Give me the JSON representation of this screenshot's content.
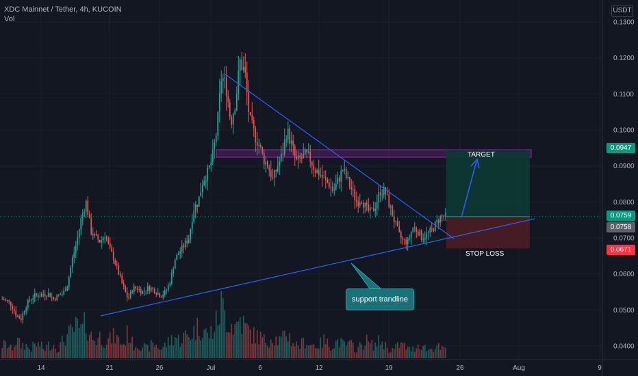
{
  "legend": {
    "title": "XDC Mainnet / Tether, 4h, KUCOIN",
    "vol": "Vol"
  },
  "currency": "USDT",
  "colors": {
    "up": "#26a69a",
    "down": "#ef5350",
    "trend": "#2962ff",
    "target_zone": "#9c27b0",
    "long_profit": "#0d3a35",
    "long_loss": "#4a1d22"
  },
  "price_tags": {
    "target": {
      "text": "0.0947",
      "color": "#089981"
    },
    "last": {
      "text": "0.0759",
      "color": "#089981"
    },
    "current": {
      "text": "0.0758",
      "color": "#5d606b"
    },
    "stop": {
      "text": "0.0671",
      "color": "#f23645"
    }
  },
  "annotations": {
    "target": "TARGET",
    "stop_loss": "STOP LOSS",
    "support": "support trandline"
  },
  "chart_data": {
    "type": "candlestick",
    "title": "XDC Mainnet / Tether, 4h, KUCOIN",
    "ylim": [
      0.037,
      0.1315
    ],
    "y_ticks": [
      "0.1300",
      "0.1200",
      "0.1100",
      "0.1000",
      "0.0900",
      "0.0800",
      "0.0700",
      "0.0600",
      "0.0500",
      "0.0400"
    ],
    "x_ticks": [
      "14",
      "21",
      "26",
      "Jul",
      "6",
      "12",
      "19",
      "26",
      "Aug",
      "9"
    ],
    "price_levels": {
      "target": 0.0947,
      "last": 0.0759,
      "current": 0.0758,
      "stop_loss": 0.0671
    },
    "anchors": [
      0.053,
      0.0525,
      0.0515,
      0.0485,
      0.0475,
      0.051,
      0.053,
      0.054,
      0.054,
      0.0545,
      0.0545,
      0.053,
      0.054,
      0.0545,
      0.057,
      0.064,
      0.069,
      0.076,
      0.08,
      0.072,
      0.07,
      0.069,
      0.071,
      0.067,
      0.064,
      0.06,
      0.056,
      0.053,
      0.056,
      0.056,
      0.055,
      0.056,
      0.056,
      0.055,
      0.054,
      0.055,
      0.058,
      0.064,
      0.066,
      0.068,
      0.07,
      0.078,
      0.08,
      0.086,
      0.088,
      0.092,
      0.1,
      0.115,
      0.112,
      0.102,
      0.108,
      0.119,
      0.116,
      0.103,
      0.099,
      0.096,
      0.092,
      0.09,
      0.086,
      0.09,
      0.093,
      0.1,
      0.096,
      0.091,
      0.092,
      0.093,
      0.092,
      0.089,
      0.088,
      0.086,
      0.085,
      0.083,
      0.086,
      0.089,
      0.086,
      0.083,
      0.08,
      0.081,
      0.078,
      0.077,
      0.079,
      0.083,
      0.083,
      0.079,
      0.075,
      0.071,
      0.069,
      0.069,
      0.073,
      0.072,
      0.07,
      0.071,
      0.072,
      0.074,
      0.076,
      0.0758
    ],
    "volume": [
      3,
      3,
      2,
      4,
      3,
      3,
      2,
      3,
      3,
      2,
      3,
      3,
      2,
      4,
      5,
      6,
      7,
      6,
      8,
      5,
      4,
      5,
      4,
      4,
      5,
      4,
      3,
      6,
      3,
      3,
      3,
      2,
      3,
      3,
      2,
      3,
      4,
      5,
      4,
      5,
      5,
      6,
      7,
      7,
      5,
      6,
      8,
      12,
      9,
      8,
      7,
      9,
      7,
      6,
      5,
      5,
      4,
      4,
      5,
      4,
      4,
      6,
      4,
      3,
      3,
      4,
      3,
      3,
      3,
      4,
      3,
      3,
      4,
      3,
      3,
      3,
      2,
      3,
      4,
      3,
      3,
      4,
      3,
      2,
      2,
      3,
      3,
      2,
      2,
      3,
      3,
      2,
      2,
      3,
      2,
      2
    ]
  }
}
